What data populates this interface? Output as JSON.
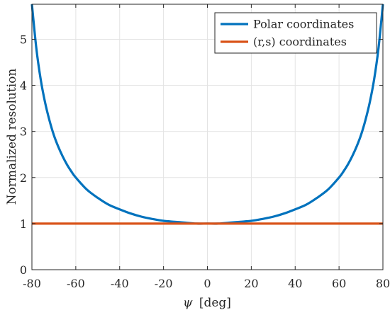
{
  "chart_data": {
    "type": "line",
    "title": "",
    "xlabel": "ψ [deg]",
    "xlabel_symbol": "ψ",
    "xlabel_unit": "[deg]",
    "ylabel": "Normalized resolution",
    "xlim": [
      -80,
      80
    ],
    "ylim": [
      0,
      5.76
    ],
    "x_ticks": [
      -80,
      -60,
      -40,
      -20,
      0,
      20,
      40,
      60,
      80
    ],
    "y_ticks": [
      0,
      1,
      2,
      3,
      4,
      5
    ],
    "grid": true,
    "legend": {
      "placement": "top-right",
      "entries": [
        "Polar coordinates",
        "(r,s) coordinates"
      ]
    },
    "series": [
      {
        "name": "Polar coordinates",
        "color": "#0072BD",
        "x": [
          -80,
          -78,
          -76,
          -74,
          -72,
          -70,
          -68,
          -66,
          -64,
          -62,
          -60,
          -55,
          -50,
          -45,
          -40,
          -35,
          -30,
          -25,
          -20,
          -15,
          -10,
          -5,
          0,
          5,
          10,
          15,
          20,
          25,
          30,
          35,
          40,
          45,
          50,
          55,
          60,
          62,
          64,
          66,
          68,
          70,
          72,
          74,
          76,
          78,
          80
        ],
        "y": [
          5.76,
          4.81,
          4.13,
          3.63,
          3.24,
          2.92,
          2.67,
          2.46,
          2.28,
          2.13,
          2.0,
          1.74,
          1.56,
          1.41,
          1.31,
          1.22,
          1.15,
          1.1,
          1.06,
          1.04,
          1.02,
          1.0,
          1.0,
          1.0,
          1.02,
          1.04,
          1.06,
          1.1,
          1.15,
          1.22,
          1.31,
          1.41,
          1.56,
          1.74,
          2.0,
          2.13,
          2.28,
          2.46,
          2.67,
          2.92,
          3.24,
          3.63,
          4.13,
          4.81,
          5.76
        ]
      },
      {
        "name": "(r,s) coordinates",
        "color": "#D95319",
        "x": [
          -80,
          80
        ],
        "y": [
          1,
          1
        ]
      }
    ]
  }
}
